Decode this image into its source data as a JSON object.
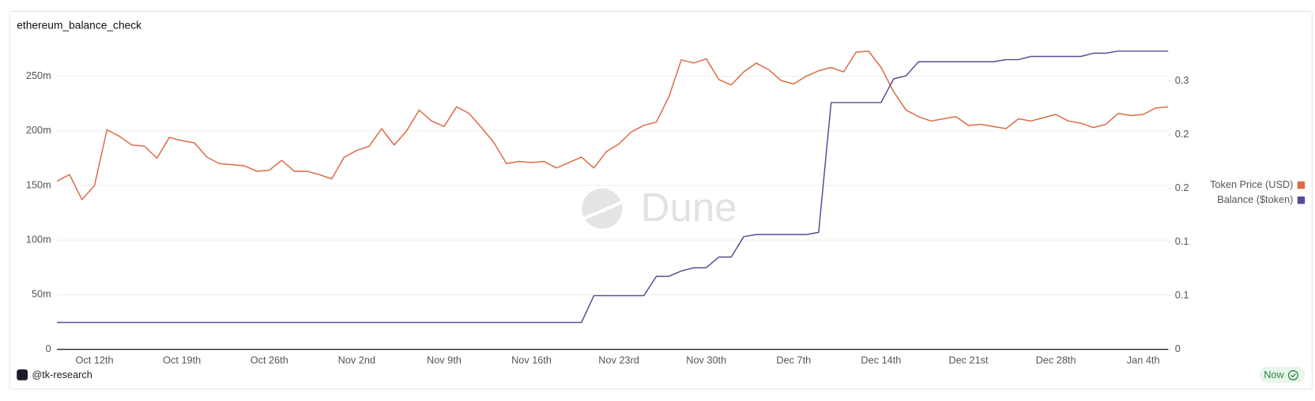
{
  "chart_data": {
    "type": "line",
    "title": "ethereum_balance_check",
    "categories": [
      null,
      null,
      null,
      "Oct 12th",
      null,
      null,
      null,
      null,
      null,
      null,
      "Oct 19th",
      null,
      null,
      null,
      null,
      null,
      null,
      "Oct 26th",
      null,
      null,
      null,
      null,
      null,
      null,
      "Nov 2nd",
      null,
      null,
      null,
      null,
      null,
      null,
      "Nov 9th",
      null,
      null,
      null,
      null,
      null,
      null,
      "Nov 16th",
      null,
      null,
      null,
      null,
      null,
      null,
      "Nov 23rd",
      null,
      null,
      null,
      null,
      null,
      null,
      "Nov 30th",
      null,
      null,
      null,
      null,
      null,
      null,
      "Dec 7th",
      null,
      null,
      null,
      null,
      null,
      null,
      "Dec 14th",
      null,
      null,
      null,
      null,
      null,
      null,
      "Dec 21st",
      null,
      null,
      null,
      null,
      null,
      null,
      "Dec 28th",
      null,
      null,
      null,
      null,
      null,
      null,
      "Jan 4th",
      null,
      null
    ],
    "series": [
      {
        "name": "Token Price (USD)",
        "color": "#dd6a45",
        "values": [
          154,
          160,
          137,
          150,
          201,
          195,
          187,
          186,
          175,
          194,
          191,
          189,
          176,
          170,
          169,
          168,
          163,
          164,
          173,
          163,
          163,
          160,
          156,
          176,
          182,
          186,
          202,
          187,
          200,
          219,
          209,
          204,
          222,
          216,
          203,
          189,
          170,
          172,
          171,
          172,
          166,
          171,
          176,
          166,
          181,
          188,
          199,
          205,
          208,
          231,
          265,
          262,
          266,
          247,
          242,
          254,
          262,
          256,
          246,
          243,
          250,
          255,
          258,
          254,
          272,
          273,
          258,
          236,
          219,
          213,
          209,
          211,
          213,
          205,
          206,
          204,
          202,
          211,
          209,
          212,
          215,
          209,
          207,
          203,
          206,
          216,
          214,
          215,
          221,
          222
        ]
      },
      {
        "name": "Balance ($token)",
        "color": "#574c96",
        "axis": "y2",
        "values": [
          0.025,
          0.025,
          0.025,
          0.025,
          0.025,
          0.025,
          0.025,
          0.025,
          0.025,
          0.025,
          0.025,
          0.025,
          0.025,
          0.025,
          0.025,
          0.025,
          0.025,
          0.025,
          0.025,
          0.025,
          0.025,
          0.025,
          0.025,
          0.025,
          0.025,
          0.025,
          0.025,
          0.025,
          0.025,
          0.025,
          0.025,
          0.025,
          0.025,
          0.025,
          0.025,
          0.025,
          0.025,
          0.025,
          0.025,
          0.025,
          0.025,
          0.025,
          0.025,
          0.05,
          0.05,
          0.05,
          0.05,
          0.05,
          0.068,
          0.068,
          0.073,
          0.076,
          0.076,
          0.086,
          0.086,
          0.105,
          0.107,
          0.107,
          0.107,
          0.107,
          0.107,
          0.109,
          0.23,
          0.23,
          0.23,
          0.23,
          0.23,
          0.252,
          0.255,
          0.268,
          0.268,
          0.268,
          0.268,
          0.268,
          0.268,
          0.268,
          0.27,
          0.27,
          0.273,
          0.273,
          0.273,
          0.273,
          0.273,
          0.276,
          0.276,
          0.278,
          0.278,
          0.278,
          0.278,
          0.278
        ]
      }
    ],
    "ylim": [
      0,
      275
    ],
    "yticks": [
      0,
      {
        "value": 50,
        "label": "50m"
      },
      {
        "value": 100,
        "label": "100m"
      },
      {
        "value": 150,
        "label": "150m"
      },
      {
        "value": 200,
        "label": "200m"
      },
      {
        "value": 250,
        "label": "250m"
      }
    ],
    "y2lim": [
      0,
      0.28
    ],
    "y2ticks": [
      0,
      {
        "value": 0.05,
        "label": "0.1"
      },
      {
        "value": 0.1,
        "label": "0.1"
      },
      {
        "value": 0.15,
        "label": "0.2"
      },
      {
        "value": 0.2,
        "label": "0.2"
      },
      {
        "value": 0.25,
        "label": "0.3"
      }
    ],
    "grid": true,
    "legend": "right"
  },
  "watermark": "Dune",
  "author": "@tk-research",
  "status": "Now"
}
